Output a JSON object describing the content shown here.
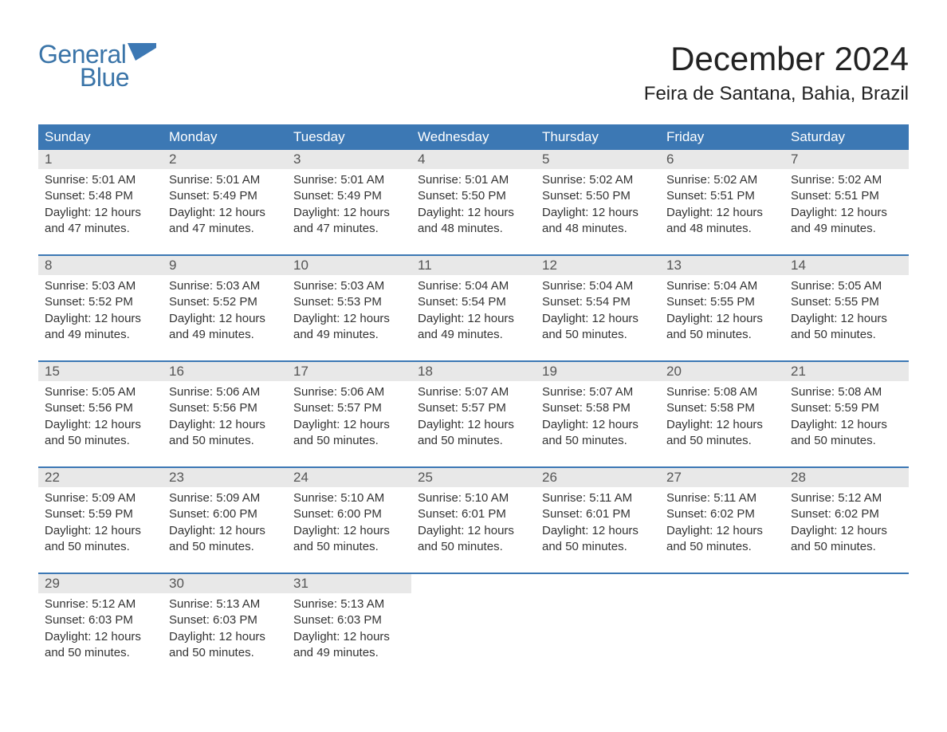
{
  "brand": {
    "general": "General",
    "blue": "Blue",
    "flag_color": "#3c78b4"
  },
  "title": "December 2024",
  "location": "Feira de Santana, Bahia, Brazil",
  "colors": {
    "header_bg": "#3c78b4",
    "header_text": "#ffffff",
    "daynum_bg": "#e8e8e8",
    "text": "#333333",
    "brand": "#3a74a8",
    "row_border": "#3c78b4",
    "background": "#ffffff"
  },
  "typography": {
    "title_fontsize": 42,
    "location_fontsize": 24,
    "dayhead_fontsize": 17,
    "daynum_fontsize": 17,
    "detail_fontsize": 15,
    "logo_fontsize": 32
  },
  "day_headers": [
    "Sunday",
    "Monday",
    "Tuesday",
    "Wednesday",
    "Thursday",
    "Friday",
    "Saturday"
  ],
  "weeks": [
    [
      {
        "num": "1",
        "sunrise": "Sunrise: 5:01 AM",
        "sunset": "Sunset: 5:48 PM",
        "daylight1": "Daylight: 12 hours",
        "daylight2": "and 47 minutes."
      },
      {
        "num": "2",
        "sunrise": "Sunrise: 5:01 AM",
        "sunset": "Sunset: 5:49 PM",
        "daylight1": "Daylight: 12 hours",
        "daylight2": "and 47 minutes."
      },
      {
        "num": "3",
        "sunrise": "Sunrise: 5:01 AM",
        "sunset": "Sunset: 5:49 PM",
        "daylight1": "Daylight: 12 hours",
        "daylight2": "and 47 minutes."
      },
      {
        "num": "4",
        "sunrise": "Sunrise: 5:01 AM",
        "sunset": "Sunset: 5:50 PM",
        "daylight1": "Daylight: 12 hours",
        "daylight2": "and 48 minutes."
      },
      {
        "num": "5",
        "sunrise": "Sunrise: 5:02 AM",
        "sunset": "Sunset: 5:50 PM",
        "daylight1": "Daylight: 12 hours",
        "daylight2": "and 48 minutes."
      },
      {
        "num": "6",
        "sunrise": "Sunrise: 5:02 AM",
        "sunset": "Sunset: 5:51 PM",
        "daylight1": "Daylight: 12 hours",
        "daylight2": "and 48 minutes."
      },
      {
        "num": "7",
        "sunrise": "Sunrise: 5:02 AM",
        "sunset": "Sunset: 5:51 PM",
        "daylight1": "Daylight: 12 hours",
        "daylight2": "and 49 minutes."
      }
    ],
    [
      {
        "num": "8",
        "sunrise": "Sunrise: 5:03 AM",
        "sunset": "Sunset: 5:52 PM",
        "daylight1": "Daylight: 12 hours",
        "daylight2": "and 49 minutes."
      },
      {
        "num": "9",
        "sunrise": "Sunrise: 5:03 AM",
        "sunset": "Sunset: 5:52 PM",
        "daylight1": "Daylight: 12 hours",
        "daylight2": "and 49 minutes."
      },
      {
        "num": "10",
        "sunrise": "Sunrise: 5:03 AM",
        "sunset": "Sunset: 5:53 PM",
        "daylight1": "Daylight: 12 hours",
        "daylight2": "and 49 minutes."
      },
      {
        "num": "11",
        "sunrise": "Sunrise: 5:04 AM",
        "sunset": "Sunset: 5:54 PM",
        "daylight1": "Daylight: 12 hours",
        "daylight2": "and 49 minutes."
      },
      {
        "num": "12",
        "sunrise": "Sunrise: 5:04 AM",
        "sunset": "Sunset: 5:54 PM",
        "daylight1": "Daylight: 12 hours",
        "daylight2": "and 50 minutes."
      },
      {
        "num": "13",
        "sunrise": "Sunrise: 5:04 AM",
        "sunset": "Sunset: 5:55 PM",
        "daylight1": "Daylight: 12 hours",
        "daylight2": "and 50 minutes."
      },
      {
        "num": "14",
        "sunrise": "Sunrise: 5:05 AM",
        "sunset": "Sunset: 5:55 PM",
        "daylight1": "Daylight: 12 hours",
        "daylight2": "and 50 minutes."
      }
    ],
    [
      {
        "num": "15",
        "sunrise": "Sunrise: 5:05 AM",
        "sunset": "Sunset: 5:56 PM",
        "daylight1": "Daylight: 12 hours",
        "daylight2": "and 50 minutes."
      },
      {
        "num": "16",
        "sunrise": "Sunrise: 5:06 AM",
        "sunset": "Sunset: 5:56 PM",
        "daylight1": "Daylight: 12 hours",
        "daylight2": "and 50 minutes."
      },
      {
        "num": "17",
        "sunrise": "Sunrise: 5:06 AM",
        "sunset": "Sunset: 5:57 PM",
        "daylight1": "Daylight: 12 hours",
        "daylight2": "and 50 minutes."
      },
      {
        "num": "18",
        "sunrise": "Sunrise: 5:07 AM",
        "sunset": "Sunset: 5:57 PM",
        "daylight1": "Daylight: 12 hours",
        "daylight2": "and 50 minutes."
      },
      {
        "num": "19",
        "sunrise": "Sunrise: 5:07 AM",
        "sunset": "Sunset: 5:58 PM",
        "daylight1": "Daylight: 12 hours",
        "daylight2": "and 50 minutes."
      },
      {
        "num": "20",
        "sunrise": "Sunrise: 5:08 AM",
        "sunset": "Sunset: 5:58 PM",
        "daylight1": "Daylight: 12 hours",
        "daylight2": "and 50 minutes."
      },
      {
        "num": "21",
        "sunrise": "Sunrise: 5:08 AM",
        "sunset": "Sunset: 5:59 PM",
        "daylight1": "Daylight: 12 hours",
        "daylight2": "and 50 minutes."
      }
    ],
    [
      {
        "num": "22",
        "sunrise": "Sunrise: 5:09 AM",
        "sunset": "Sunset: 5:59 PM",
        "daylight1": "Daylight: 12 hours",
        "daylight2": "and 50 minutes."
      },
      {
        "num": "23",
        "sunrise": "Sunrise: 5:09 AM",
        "sunset": "Sunset: 6:00 PM",
        "daylight1": "Daylight: 12 hours",
        "daylight2": "and 50 minutes."
      },
      {
        "num": "24",
        "sunrise": "Sunrise: 5:10 AM",
        "sunset": "Sunset: 6:00 PM",
        "daylight1": "Daylight: 12 hours",
        "daylight2": "and 50 minutes."
      },
      {
        "num": "25",
        "sunrise": "Sunrise: 5:10 AM",
        "sunset": "Sunset: 6:01 PM",
        "daylight1": "Daylight: 12 hours",
        "daylight2": "and 50 minutes."
      },
      {
        "num": "26",
        "sunrise": "Sunrise: 5:11 AM",
        "sunset": "Sunset: 6:01 PM",
        "daylight1": "Daylight: 12 hours",
        "daylight2": "and 50 minutes."
      },
      {
        "num": "27",
        "sunrise": "Sunrise: 5:11 AM",
        "sunset": "Sunset: 6:02 PM",
        "daylight1": "Daylight: 12 hours",
        "daylight2": "and 50 minutes."
      },
      {
        "num": "28",
        "sunrise": "Sunrise: 5:12 AM",
        "sunset": "Sunset: 6:02 PM",
        "daylight1": "Daylight: 12 hours",
        "daylight2": "and 50 minutes."
      }
    ],
    [
      {
        "num": "29",
        "sunrise": "Sunrise: 5:12 AM",
        "sunset": "Sunset: 6:03 PM",
        "daylight1": "Daylight: 12 hours",
        "daylight2": "and 50 minutes."
      },
      {
        "num": "30",
        "sunrise": "Sunrise: 5:13 AM",
        "sunset": "Sunset: 6:03 PM",
        "daylight1": "Daylight: 12 hours",
        "daylight2": "and 50 minutes."
      },
      {
        "num": "31",
        "sunrise": "Sunrise: 5:13 AM",
        "sunset": "Sunset: 6:03 PM",
        "daylight1": "Daylight: 12 hours",
        "daylight2": "and 49 minutes."
      },
      null,
      null,
      null,
      null
    ]
  ]
}
